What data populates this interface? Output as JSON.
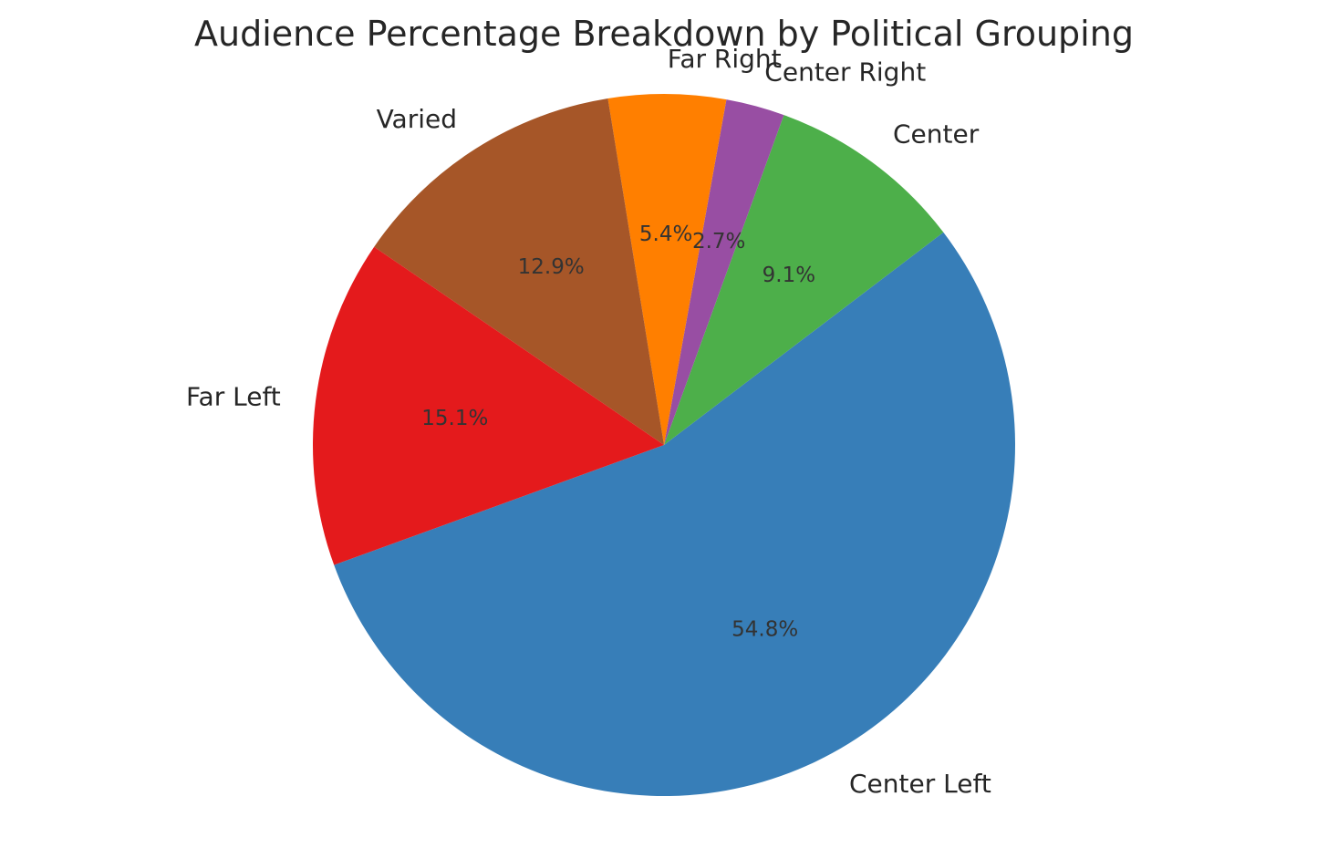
{
  "chart_data": {
    "type": "pie",
    "title": "Audience Percentage Breakdown by Political Grouping",
    "start_angle_deg": 200,
    "direction": "counterclockwise",
    "slices": [
      {
        "label": "Center Left",
        "value": 54.8,
        "pct_label": "54.8%",
        "color": "#377eb8"
      },
      {
        "label": "Center",
        "value": 9.1,
        "pct_label": "9.1%",
        "color": "#4daf4a"
      },
      {
        "label": "Center Right",
        "value": 2.7,
        "pct_label": "2.7%",
        "color": "#984ea3"
      },
      {
        "label": "Far Right",
        "value": 5.4,
        "pct_label": "5.4%",
        "color": "#ff7f00"
      },
      {
        "label": "Varied",
        "value": 12.9,
        "pct_label": "12.9%",
        "color": "#a65628"
      },
      {
        "label": "Far Left",
        "value": 15.1,
        "pct_label": "15.1%",
        "color": "#e41a1c"
      }
    ]
  }
}
